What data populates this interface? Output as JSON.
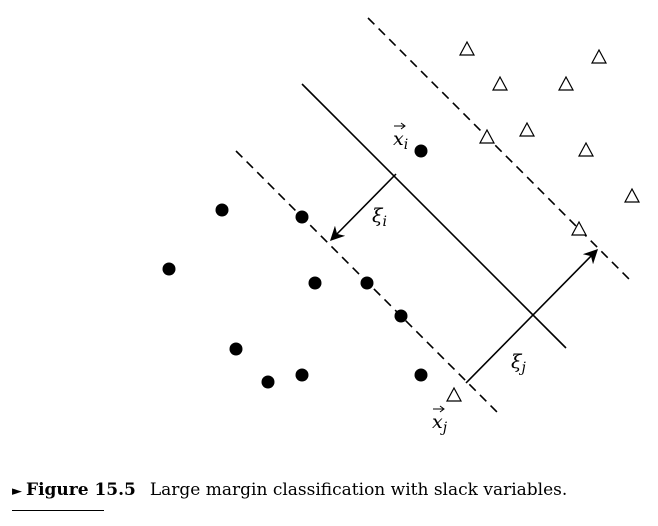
{
  "caption": {
    "marker": "►",
    "figure_label": "Figure 15.5",
    "text": "Large margin classification with slack variables."
  },
  "labels": {
    "xi": {
      "base": "x",
      "sub": "i"
    },
    "xj": {
      "base": "x",
      "sub": "j"
    },
    "zeta_i": {
      "base": "ξ",
      "sub": "i"
    },
    "zeta_j": {
      "base": "ξ",
      "sub": "j"
    }
  }
}
